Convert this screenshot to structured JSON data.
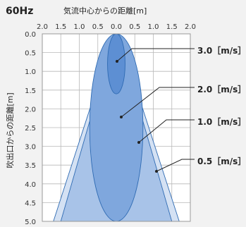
{
  "header": {
    "frequency": "60Hz",
    "top_axis_label": "気流中心からの距離[m]",
    "left_axis_label": "吹出口からの距離[m]"
  },
  "chart_data": {
    "type": "diagram",
    "x_ticks": [
      "2.0",
      "1.5",
      "1.0",
      "0.5",
      "0.0",
      "0.5",
      "1.0",
      "1.5",
      "2.0"
    ],
    "y_ticks": [
      "0.0",
      "0.5",
      "1.0",
      "1.5",
      "2.0",
      "2.5",
      "3.0",
      "3.5",
      "4.0",
      "4.5",
      "5.0"
    ],
    "regions": [
      {
        "label": "0.5［m/s］",
        "half_width_at_5m": 1.7
      },
      {
        "label": "1.0［m/s］",
        "half_width_at_5m": 1.5
      },
      {
        "label": "2.0［m/s］",
        "half_width_at_5m": 1.0,
        "length": 5.0
      },
      {
        "label": "3.0［m/s］",
        "half_width_at_5m": 0.25,
        "length": 1.6
      }
    ]
  },
  "colors": {
    "outer_fill": "#d4e1f3",
    "mid_fill": "#a8c3e8",
    "inner_fill": "#7fa7dd",
    "core_fill": "#5d8fd3",
    "stroke": "#2f6bb3",
    "grid": "#b8b8b8"
  }
}
